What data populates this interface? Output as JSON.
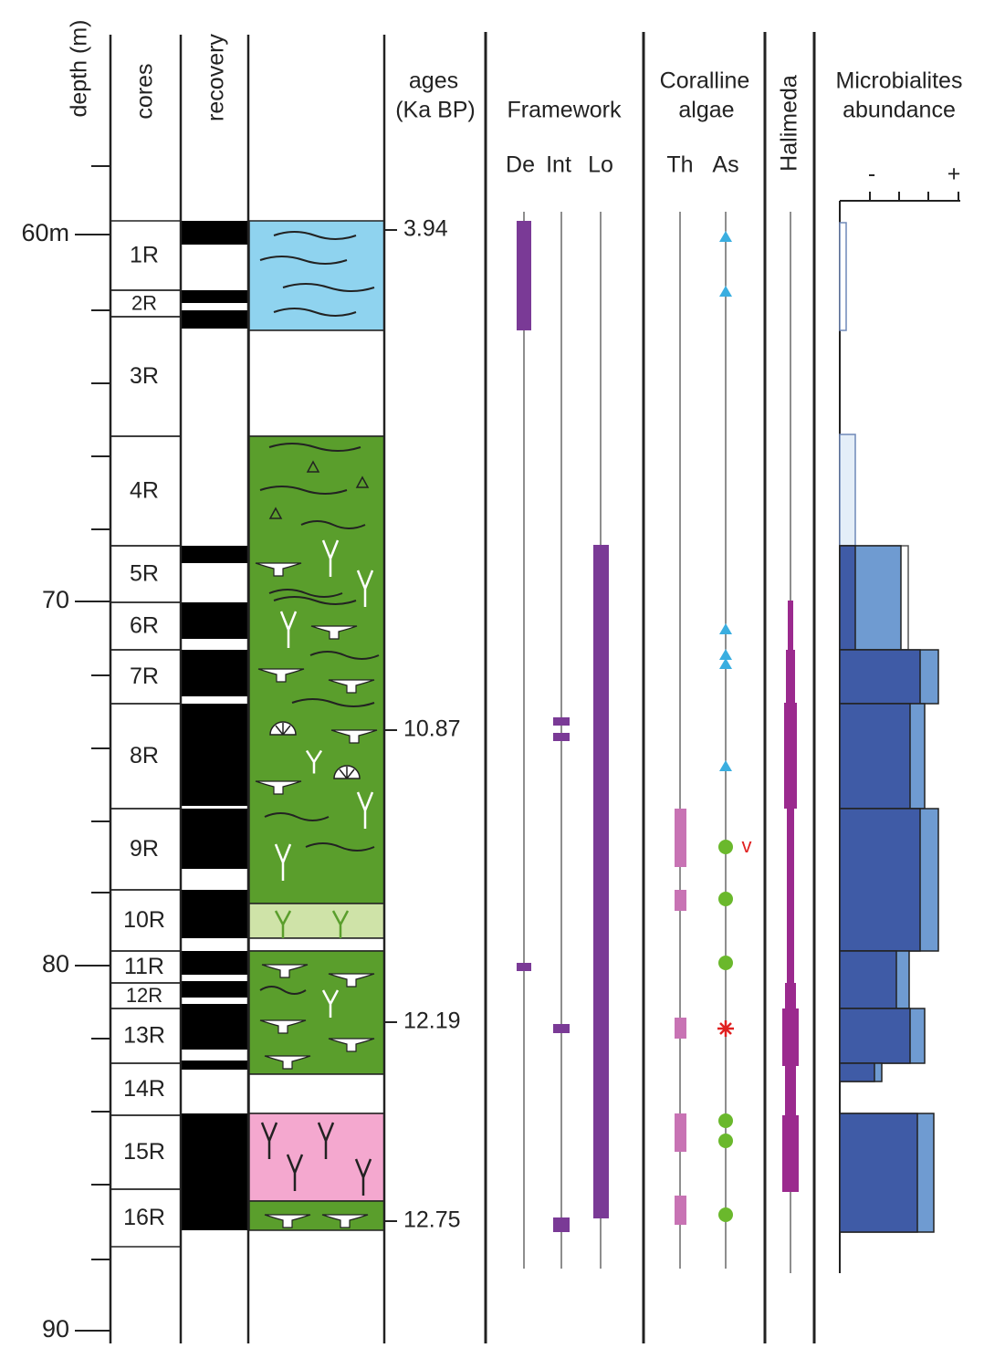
{
  "headers": {
    "depth": "depth (m)",
    "cores": "cores",
    "recovery": "recovery",
    "ages": [
      "ages",
      "(Ka BP)"
    ],
    "framework": "Framework",
    "framework_sub": [
      "De",
      "Int",
      "Lo"
    ],
    "coralline": [
      "Coralline",
      "algae"
    ],
    "coralline_sub": [
      "Th",
      "As"
    ],
    "halimeda": "Halimeda",
    "microbialites": [
      "Microbialites",
      "abundance"
    ],
    "abundance_scale": [
      "-",
      "+"
    ]
  },
  "depth_labels": [
    "60m",
    "70",
    "80",
    "90"
  ],
  "cores": [
    "1R",
    "2R",
    "3R",
    "4R",
    "5R",
    "6R",
    "7R",
    "8R",
    "9R",
    "10R",
    "11R",
    "12R",
    "13R",
    "14R",
    "15R",
    "16R"
  ],
  "ages": [
    "3.94",
    "10.87",
    "12.19",
    "12.75"
  ],
  "annotation": "v"
}
